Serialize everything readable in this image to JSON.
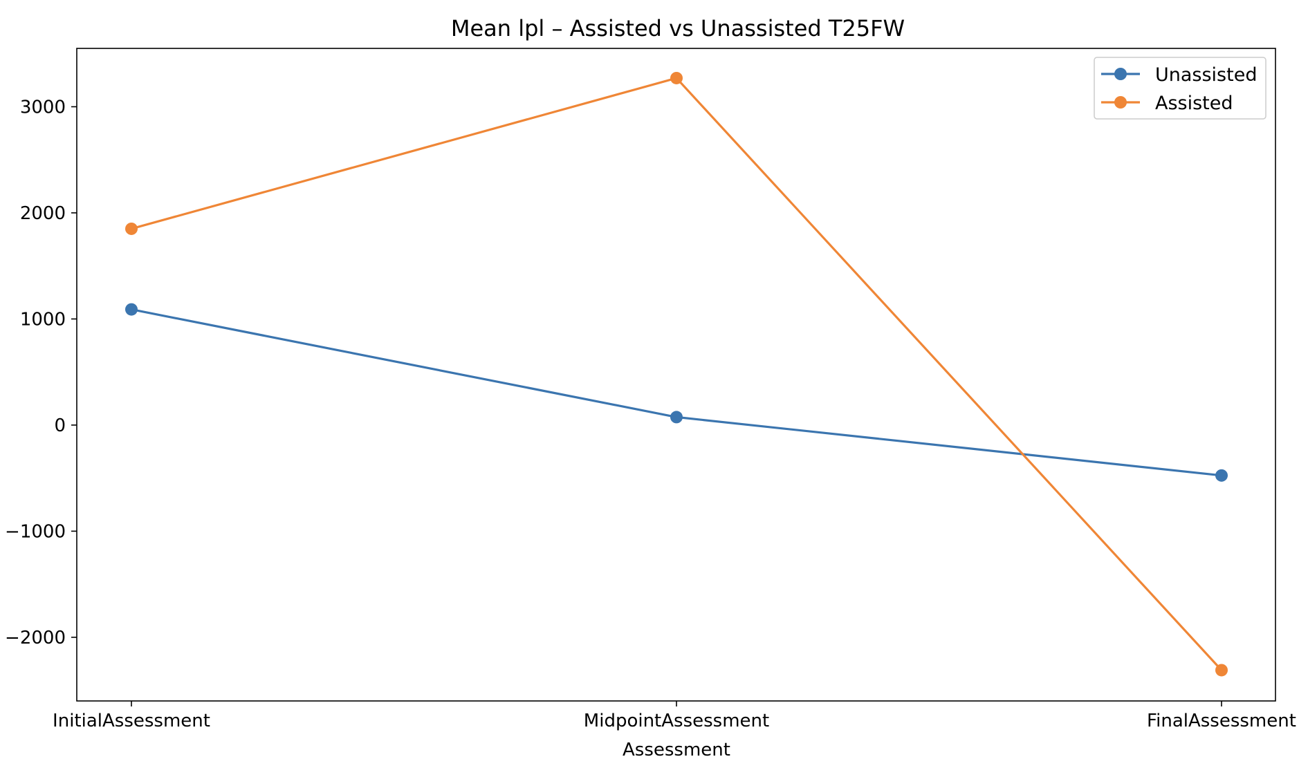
{
  "chart_data": {
    "type": "line",
    "title": "Mean lpl – Assisted vs Unassisted T25FW",
    "xlabel": "Assessment",
    "ylabel": "",
    "categories": [
      "InitialAssessment",
      "MidpointAssessment",
      "FinalAssessment"
    ],
    "ylim": [
      -2600,
      3550
    ],
    "yticks": [
      -2000,
      -1000,
      0,
      1000,
      2000,
      3000
    ],
    "ytick_labels": [
      "−2000",
      "−1000",
      "0",
      "1000",
      "2000",
      "3000"
    ],
    "grid": false,
    "legend_position": "top-right",
    "series": [
      {
        "name": "Unassisted",
        "color": "#3b75af",
        "marker": "circle",
        "values": [
          1090,
          75,
          -475
        ]
      },
      {
        "name": "Assisted",
        "color": "#ef8636",
        "marker": "circle",
        "values": [
          1850,
          3270,
          -2310
        ]
      }
    ]
  }
}
